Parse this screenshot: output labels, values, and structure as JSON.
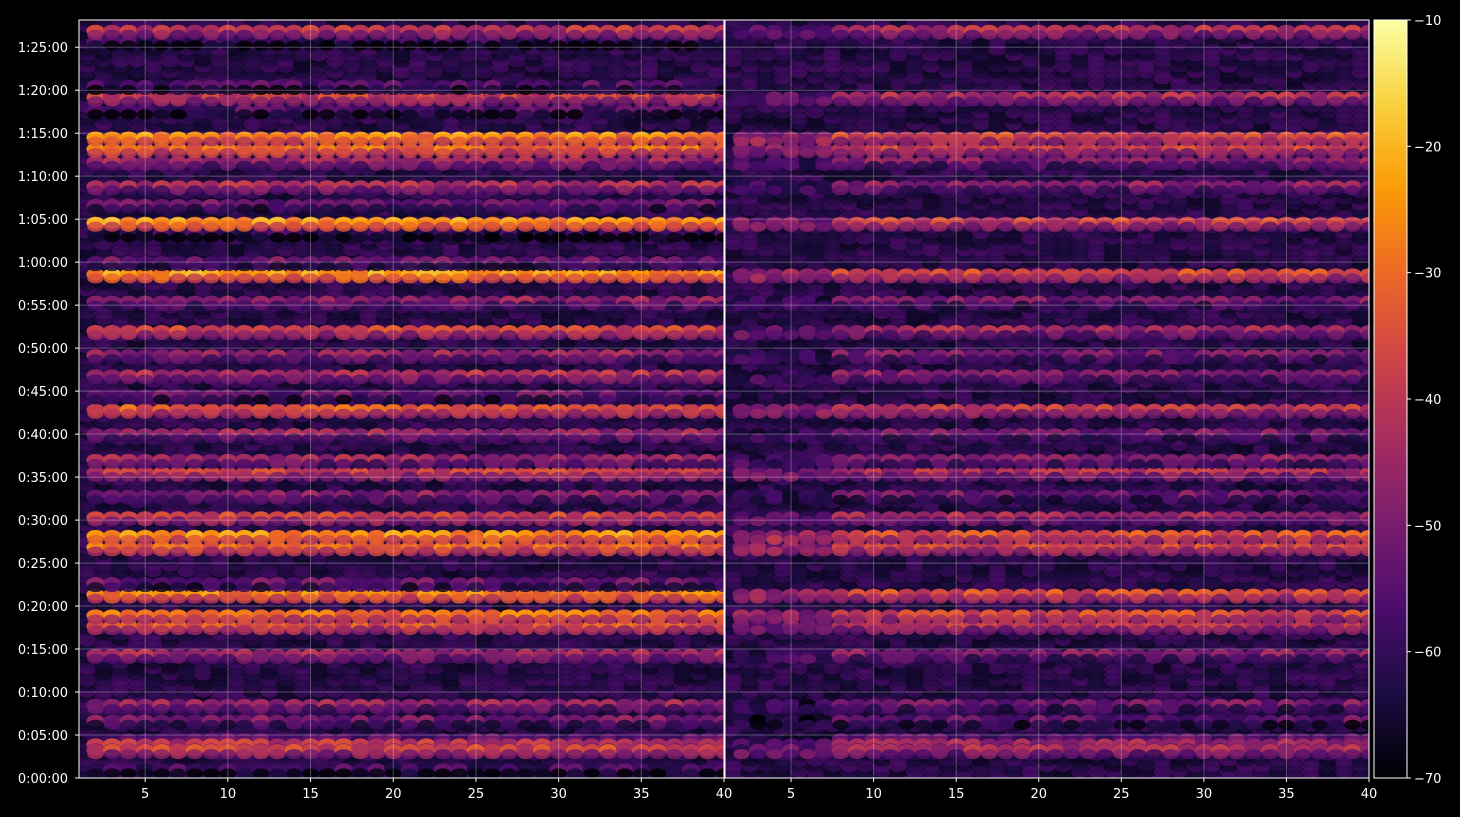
{
  "chart_data": {
    "type": "heatmap",
    "title": "",
    "xlabel": "",
    "ylabel": "",
    "background": "#000000",
    "colormap": "inferno",
    "colormap_stops": [
      "#000004",
      "#1b0c41",
      "#4a0c6b",
      "#781c6d",
      "#a52c60",
      "#cf4446",
      "#ed6925",
      "#fb9b06",
      "#f7d13d",
      "#fcffa4"
    ],
    "grid": true,
    "y_ticks": [
      "0:00:00",
      "0:05:00",
      "0:10:00",
      "0:15:00",
      "0:20:00",
      "0:25:00",
      "0:30:00",
      "0:35:00",
      "0:40:00",
      "0:45:00",
      "0:50:00",
      "0:55:00",
      "1:00:00",
      "1:05:00",
      "1:10:00",
      "1:15:00",
      "1:20:00",
      "1:25:00"
    ],
    "y_range_seconds": [
      0,
      5290
    ],
    "panels": [
      {
        "name": "left",
        "x_range": [
          1,
          40
        ],
        "x_ticks": [
          "5",
          "10",
          "15",
          "20",
          "25",
          "30",
          "35",
          "40"
        ],
        "rows": [
          {
            "t": 270,
            "level": -55
          },
          {
            "t": 235,
            "level": -40
          },
          {
            "t": 195,
            "level": -38
          },
          {
            "t": 60,
            "level": -58
          },
          {
            "t": 400,
            "level": -50
          },
          {
            "t": 510,
            "level": -46
          },
          {
            "t": 860,
            "level": -44
          },
          {
            "t": 1060,
            "level": -34
          },
          {
            "t": 1135,
            "level": -30
          },
          {
            "t": 1280,
            "level": -27
          },
          {
            "t": 1360,
            "level": -52
          },
          {
            "t": 1610,
            "level": -30
          },
          {
            "t": 1690,
            "level": -26
          },
          {
            "t": 1820,
            "level": -38
          },
          {
            "t": 1970,
            "level": -48
          },
          {
            "t": 2130,
            "level": -38
          },
          {
            "t": 2220,
            "level": -45
          },
          {
            "t": 2400,
            "level": -45
          },
          {
            "t": 2570,
            "level": -33
          },
          {
            "t": 2670,
            "level": -53
          },
          {
            "t": 2810,
            "level": -42
          },
          {
            "t": 2950,
            "level": -46
          },
          {
            "t": 3120,
            "level": -37
          },
          {
            "t": 3325,
            "level": -47
          },
          {
            "t": 3515,
            "level": -24
          },
          {
            "t": 3600,
            "level": -52
          },
          {
            "t": 3800,
            "level": -60
          },
          {
            "t": 3875,
            "level": -25
          },
          {
            "t": 4000,
            "level": -52
          },
          {
            "t": 4130,
            "level": -43
          },
          {
            "t": 4300,
            "level": -45
          },
          {
            "t": 4390,
            "level": -30
          },
          {
            "t": 4470,
            "level": -27
          },
          {
            "t": 4660,
            "level": -56
          },
          {
            "t": 4750,
            "level": -38
          },
          {
            "t": 4830,
            "level": -56
          },
          {
            "t": 5140,
            "level": -60
          },
          {
            "t": 5215,
            "level": -40
          }
        ]
      },
      {
        "name": "right",
        "x_range": [
          1,
          40
        ],
        "x_ticks": [
          "5",
          "10",
          "15",
          "20",
          "25",
          "30",
          "35",
          "40"
        ],
        "rows": [
          {
            "t": 270,
            "level": -55
          },
          {
            "t": 235,
            "level": -45
          },
          {
            "t": 195,
            "level": -43
          },
          {
            "t": 400,
            "level": -54
          },
          {
            "t": 510,
            "level": -50
          },
          {
            "t": 860,
            "level": -48
          },
          {
            "t": 1060,
            "level": -40
          },
          {
            "t": 1135,
            "level": -36
          },
          {
            "t": 1280,
            "level": -36
          },
          {
            "t": 1610,
            "level": -36
          },
          {
            "t": 1690,
            "level": -34
          },
          {
            "t": 1820,
            "level": -44
          },
          {
            "t": 1970,
            "level": -51
          },
          {
            "t": 2130,
            "level": -42
          },
          {
            "t": 2220,
            "level": -48
          },
          {
            "t": 2400,
            "level": -50
          },
          {
            "t": 2570,
            "level": -39
          },
          {
            "t": 2810,
            "level": -48
          },
          {
            "t": 2950,
            "level": -50
          },
          {
            "t": 3120,
            "level": -44
          },
          {
            "t": 3325,
            "level": -50
          },
          {
            "t": 3515,
            "level": -36
          },
          {
            "t": 3875,
            "level": -38
          },
          {
            "t": 4130,
            "level": -48
          },
          {
            "t": 4300,
            "level": -48
          },
          {
            "t": 4390,
            "level": -38
          },
          {
            "t": 4470,
            "level": -36
          },
          {
            "t": 4750,
            "level": -43
          },
          {
            "t": 5215,
            "level": -42
          }
        ]
      }
    ],
    "colorbar": {
      "range": [
        -70,
        -10
      ],
      "ticks": [
        "−10",
        "−20",
        "−30",
        "−40",
        "−50",
        "−60",
        "−70"
      ]
    }
  }
}
